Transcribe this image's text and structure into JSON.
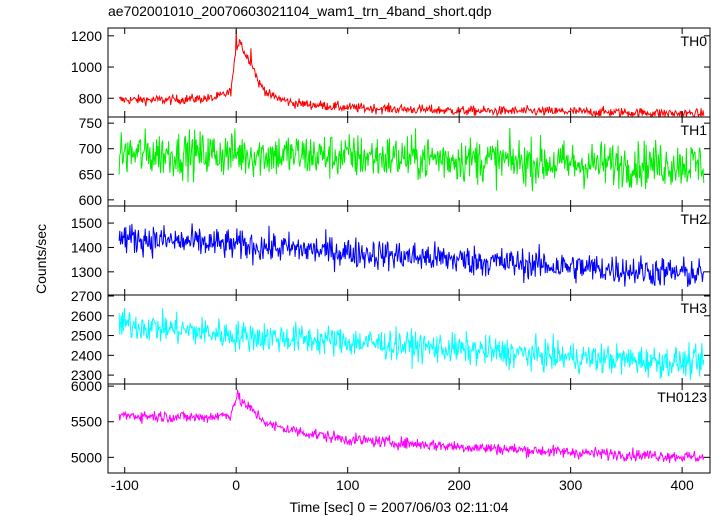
{
  "chart_data": {
    "type": "line",
    "title": "ae702001010_20070603021104_wam1_trn_4band_short.qdp",
    "xlabel": "Time [sec] 0 = 2007/06/03 02:11:04",
    "ylabel": "Counts/sec",
    "xlim": [
      -115,
      425
    ],
    "xticks": [
      -100,
      0,
      100,
      200,
      300,
      400
    ],
    "shared_x_axis": true,
    "grid": false,
    "panels": [
      {
        "name": "TH0",
        "color": "#ff0000",
        "ylim": [
          680,
          1250
        ],
        "yticks": [
          800,
          1000,
          1200
        ],
        "baseline": [
          [
            -105,
            790
          ],
          [
            -60,
            790
          ],
          [
            -20,
            800
          ],
          [
            -5,
            840
          ],
          [
            0,
            1100
          ],
          [
            3,
            1180
          ],
          [
            8,
            1080
          ],
          [
            14,
            1030
          ],
          [
            20,
            900
          ],
          [
            30,
            820
          ],
          [
            50,
            770
          ],
          [
            100,
            740
          ],
          [
            200,
            720
          ],
          [
            300,
            715
          ],
          [
            420,
            700
          ]
        ],
        "noise": 22,
        "spikes": [
          [
            0,
            1240
          ],
          [
            13,
            1120
          ]
        ]
      },
      {
        "name": "TH1",
        "color": "#00ee00",
        "ylim": [
          588,
          762
        ],
        "yticks": [
          600,
          650,
          700,
          750
        ],
        "baseline": [
          [
            -105,
            690
          ],
          [
            0,
            690
          ],
          [
            100,
            685
          ],
          [
            200,
            680
          ],
          [
            300,
            670
          ],
          [
            420,
            670
          ]
        ],
        "noise": 32
      },
      {
        "name": "TH2",
        "color": "#0000ff",
        "ylim": [
          1205,
          1570
        ],
        "yticks": [
          1300,
          1400,
          1500
        ],
        "baseline": [
          [
            -105,
            1440
          ],
          [
            0,
            1410
          ],
          [
            100,
            1380
          ],
          [
            200,
            1350
          ],
          [
            300,
            1320
          ],
          [
            420,
            1290
          ]
        ],
        "noise": 45
      },
      {
        "name": "TH3",
        "color": "#00ffff",
        "ylim": [
          2255,
          2705
        ],
        "yticks": [
          2300,
          2400,
          2500,
          2600,
          2700
        ],
        "baseline": [
          [
            -105,
            2560
          ],
          [
            0,
            2500
          ],
          [
            100,
            2470
          ],
          [
            200,
            2430
          ],
          [
            300,
            2390
          ],
          [
            420,
            2360
          ]
        ],
        "noise": 55
      },
      {
        "name": "TH0123",
        "color": "#ff00ff",
        "ylim": [
          4780,
          6030
        ],
        "yticks": [
          5000,
          5500,
          6000
        ],
        "baseline": [
          [
            -105,
            5590
          ],
          [
            -30,
            5560
          ],
          [
            -5,
            5600
          ],
          [
            0,
            5850
          ],
          [
            5,
            5780
          ],
          [
            15,
            5650
          ],
          [
            30,
            5450
          ],
          [
            60,
            5350
          ],
          [
            100,
            5250
          ],
          [
            200,
            5150
          ],
          [
            300,
            5070
          ],
          [
            420,
            5000
          ]
        ],
        "noise": 60,
        "spikes": [
          [
            1,
            5950
          ]
        ]
      }
    ]
  }
}
